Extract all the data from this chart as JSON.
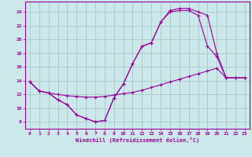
{
  "bg_color": "#cce8ea",
  "grid_color": "#aacccc",
  "line_color": "#990099",
  "xlabel": "Windchill (Refroidissement éolien,°C)",
  "xlim": [
    -0.5,
    23.5
  ],
  "ylim": [
    7,
    25.5
  ],
  "yticks": [
    8,
    10,
    12,
    14,
    16,
    18,
    20,
    22,
    24
  ],
  "xticks": [
    0,
    1,
    2,
    3,
    4,
    5,
    6,
    7,
    8,
    9,
    10,
    11,
    12,
    13,
    14,
    15,
    16,
    17,
    18,
    19,
    20,
    21,
    22,
    23
  ],
  "series": [
    {
      "x": [
        0,
        1,
        2,
        3,
        4,
        5,
        6,
        7,
        8,
        9,
        10,
        11,
        12,
        13,
        14,
        15,
        16,
        17,
        18,
        19,
        20,
        21,
        22,
        23
      ],
      "y": [
        13.8,
        12.5,
        12.2,
        12.0,
        11.8,
        11.7,
        11.6,
        11.6,
        11.7,
        11.9,
        12.1,
        12.3,
        12.6,
        13.0,
        13.4,
        13.8,
        14.2,
        14.6,
        15.0,
        15.4,
        15.8,
        14.4,
        14.4,
        14.4
      ]
    },
    {
      "x": [
        0,
        1,
        2,
        3,
        4,
        5,
        6,
        7,
        8,
        9,
        10,
        11,
        12,
        13,
        14,
        15,
        16,
        17,
        18,
        19,
        20,
        21,
        22,
        23
      ],
      "y": [
        13.8,
        12.5,
        12.2,
        11.2,
        10.5,
        9.0,
        8.5,
        8.0,
        8.2,
        11.5,
        13.5,
        16.5,
        19.0,
        19.5,
        22.5,
        24.0,
        24.2,
        24.2,
        23.5,
        19.0,
        17.5,
        14.4,
        14.4,
        14.4
      ]
    },
    {
      "x": [
        0,
        1,
        2,
        3,
        4,
        5,
        6,
        7,
        8,
        9,
        10,
        11,
        12,
        13,
        14,
        15,
        16,
        17,
        18,
        19,
        20,
        21,
        22,
        23
      ],
      "y": [
        13.8,
        12.5,
        12.2,
        11.2,
        10.5,
        9.0,
        8.5,
        8.0,
        8.2,
        11.5,
        13.5,
        16.5,
        19.0,
        19.5,
        22.5,
        24.2,
        24.5,
        24.5,
        24.0,
        23.5,
        18.0,
        14.4,
        14.4,
        14.4
      ]
    }
  ]
}
